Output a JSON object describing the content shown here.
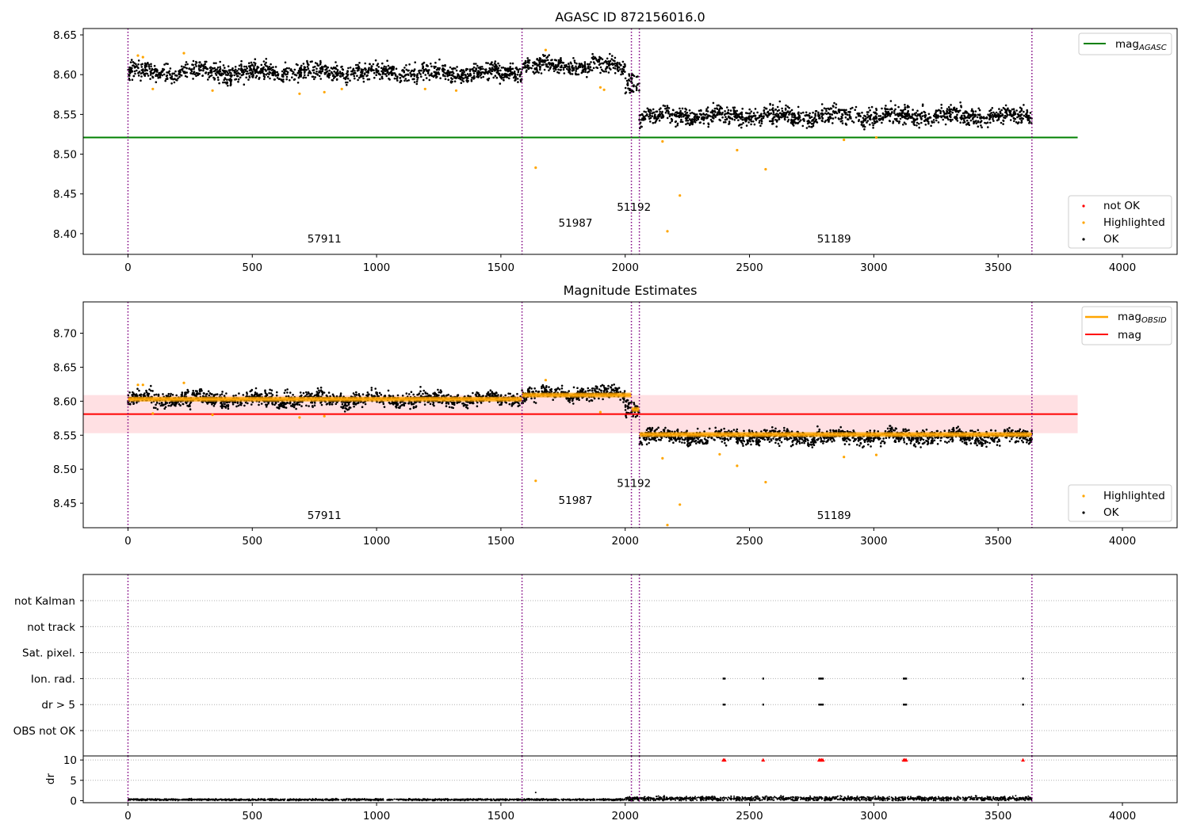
{
  "chart_data": [
    {
      "type": "scatter",
      "title": "AGASC ID 872156016.0",
      "xlabel": "",
      "ylabel": "",
      "xlim": [
        -180,
        4220
      ],
      "ylim": [
        8.374,
        8.658
      ],
      "xticks": [
        0,
        500,
        1000,
        1500,
        2000,
        2500,
        3000,
        3500,
        4000
      ],
      "yticks": [
        "8.40",
        "8.45",
        "8.50",
        "8.55",
        "8.60",
        "8.65"
      ],
      "grid": false,
      "legend_placement": [
        "top-right",
        "bottom-right"
      ],
      "obsid_boundaries": [
        0,
        1585,
        2025,
        2057,
        3636
      ],
      "obsid_labels": [
        {
          "text": "57911",
          "x": 790,
          "y": 8.389
        },
        {
          "text": "51987",
          "x": 1800,
          "y": 8.409
        },
        {
          "text": "51192",
          "x": 2035,
          "y": 8.429
        },
        {
          "text": "51189",
          "x": 2840,
          "y": 8.389
        }
      ],
      "mag_agasc": {
        "name": "mag$_{AGASC}$",
        "label_main": "mag",
        "label_sub": "AGASC",
        "value": 8.521,
        "x": [
          -180,
          3820
        ],
        "color": "#008000"
      },
      "ok_segments": [
        {
          "x": [
            0,
            1585
          ],
          "mean": 8.603,
          "spread": 0.009
        },
        {
          "x": [
            1585,
            2000
          ],
          "mean": 8.611,
          "spread": 0.008
        },
        {
          "x": [
            2000,
            2057
          ],
          "mean": 8.59,
          "spread": 0.012
        },
        {
          "x": [
            2057,
            3636
          ],
          "mean": 8.548,
          "spread": 0.009
        }
      ],
      "series": [
        {
          "name": "not OK",
          "color": "#ff0000",
          "points": []
        },
        {
          "name": "Highlighted",
          "color": "#ffa500",
          "points": [
            [
              40,
              8.624
            ],
            [
              60,
              8.622
            ],
            [
              100,
              8.582
            ],
            [
              225,
              8.627
            ],
            [
              340,
              8.58
            ],
            [
              690,
              8.576
            ],
            [
              790,
              8.578
            ],
            [
              860,
              8.582
            ],
            [
              1195,
              8.582
            ],
            [
              1320,
              8.58
            ],
            [
              1640,
              8.483
            ],
            [
              1680,
              8.631
            ],
            [
              1900,
              8.584
            ],
            [
              1915,
              8.581
            ],
            [
              2150,
              8.516
            ],
            [
              2170,
              8.403
            ],
            [
              2220,
              8.448
            ],
            [
              2450,
              8.505
            ],
            [
              2565,
              8.481
            ],
            [
              2880,
              8.518
            ],
            [
              3010,
              8.521
            ]
          ]
        },
        {
          "name": "OK",
          "color": "#000000",
          "points": []
        }
      ]
    },
    {
      "type": "scatter",
      "title": "Magnitude Estimates",
      "xlabel": "",
      "ylabel": "",
      "xlim": [
        -180,
        4220
      ],
      "ylim": [
        8.414,
        8.746
      ],
      "xticks": [
        0,
        500,
        1000,
        1500,
        2000,
        2500,
        3000,
        3500,
        4000
      ],
      "yticks": [
        "8.45",
        "8.50",
        "8.55",
        "8.60",
        "8.65",
        "8.70"
      ],
      "grid": false,
      "legend_placement": [
        "top-right",
        "bottom-right"
      ],
      "obsid_boundaries": [
        0,
        1585,
        2025,
        2057,
        3636
      ],
      "obsid_labels": [
        {
          "text": "57911",
          "x": 790,
          "y": 8.427
        },
        {
          "text": "51987",
          "x": 1800,
          "y": 8.449
        },
        {
          "text": "51192",
          "x": 2035,
          "y": 8.474
        },
        {
          "text": "51189",
          "x": 2840,
          "y": 8.427
        }
      ],
      "mag": {
        "name": "mag",
        "value": 8.581,
        "band": [
          8.553,
          8.609
        ],
        "x": [
          -180,
          3820
        ],
        "color": "#ff0000",
        "band_color": "#ffe0e3"
      },
      "mag_obsid": {
        "name": "mag$_{OBSID}$",
        "label_main": "mag",
        "label_sub": "OBSID",
        "color": "#ffa500",
        "segments": [
          {
            "x": [
              0,
              1585
            ],
            "value": 8.603
          },
          {
            "x": [
              1585,
              2025
            ],
            "value": 8.609
          },
          {
            "x": [
              2025,
              2057
            ],
            "value": 8.588
          },
          {
            "x": [
              2057,
              3636
            ],
            "value": 8.551
          }
        ]
      },
      "ok_segments": [
        {
          "x": [
            0,
            1585
          ],
          "mean": 8.603,
          "spread": 0.009
        },
        {
          "x": [
            1585,
            2000
          ],
          "mean": 8.611,
          "spread": 0.008
        },
        {
          "x": [
            2000,
            2057
          ],
          "mean": 8.59,
          "spread": 0.012
        },
        {
          "x": [
            2057,
            3636
          ],
          "mean": 8.548,
          "spread": 0.009
        }
      ],
      "series": [
        {
          "name": "Highlighted",
          "color": "#ffa500",
          "points": [
            [
              40,
              8.624
            ],
            [
              60,
              8.624
            ],
            [
              100,
              8.582
            ],
            [
              225,
              8.627
            ],
            [
              340,
              8.58
            ],
            [
              690,
              8.576
            ],
            [
              790,
              8.578
            ],
            [
              1640,
              8.483
            ],
            [
              1680,
              8.631
            ],
            [
              1900,
              8.584
            ],
            [
              2150,
              8.516
            ],
            [
              2170,
              8.418
            ],
            [
              2220,
              8.448
            ],
            [
              2380,
              8.522
            ],
            [
              2450,
              8.505
            ],
            [
              2565,
              8.481
            ],
            [
              2880,
              8.518
            ],
            [
              3010,
              8.521
            ]
          ]
        },
        {
          "name": "OK",
          "color": "#000000",
          "points": []
        }
      ]
    },
    {
      "type": "scatter",
      "title": "",
      "xlabel": "",
      "ylabel": "",
      "xlim": [
        -180,
        4220
      ],
      "categories": [
        "OBS not OK",
        "dr > 5",
        "Ion. rad.",
        "Sat. pixel.",
        "not track",
        "not Kalman"
      ],
      "grid": true,
      "obsid_boundaries": [
        0,
        1585,
        2025,
        2057,
        3636
      ],
      "flag_points": [
        {
          "category": "dr > 5",
          "x": [
            2395,
            2400,
            2555,
            2780,
            2785,
            2790,
            2795,
            3120,
            3125,
            3130,
            3600
          ]
        },
        {
          "category": "Ion. rad.",
          "x": [
            2395,
            2400,
            2555,
            2780,
            2785,
            2790,
            2795,
            3120,
            3125,
            3130,
            3600
          ]
        }
      ]
    },
    {
      "type": "scatter",
      "title": "",
      "xlabel": "",
      "ylabel": "dr",
      "xlim": [
        -180,
        4220
      ],
      "ylim": [
        -0.5,
        11
      ],
      "yticks": [
        "0",
        "5",
        "10"
      ],
      "xticks": [
        0,
        500,
        1000,
        1500,
        2000,
        2500,
        3000,
        3500,
        4000
      ],
      "grid": true,
      "obsid_boundaries": [
        0,
        1585,
        2025,
        2057,
        3636
      ],
      "clipped_points": {
        "value": 10,
        "x": [
          2395,
          2400,
          2555,
          2780,
          2785,
          2790,
          2795,
          3120,
          3125,
          3130,
          3600
        ],
        "color": "#ff0000"
      },
      "series": [
        {
          "name": "dr",
          "color": "#000000",
          "points": [
            [
              1640,
              2.0
            ]
          ],
          "baseline": [
            {
              "x": [
                0,
                2000
              ],
              "mean": 0.25,
              "spread": 0.1
            },
            {
              "x": [
                2000,
                3636
              ],
              "mean": 0.5,
              "spread": 0.25
            }
          ]
        }
      ]
    }
  ]
}
